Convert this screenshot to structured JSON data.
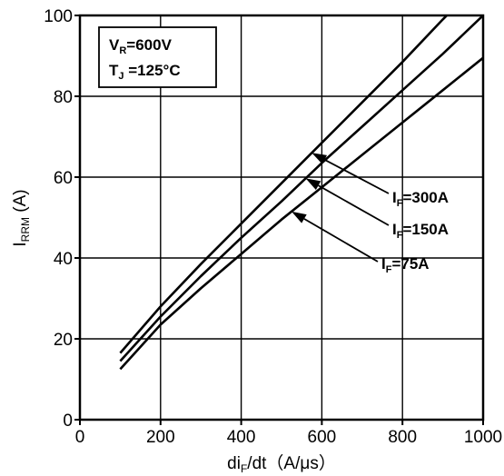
{
  "chart_data": {
    "type": "line",
    "xlabel": {
      "main": "di",
      "sub": "F",
      "rest": "/dt（A/μs）"
    },
    "ylabel": {
      "main": "I",
      "sub": "RRM",
      "rest": " (A)"
    },
    "xlim": [
      0,
      1000
    ],
    "ylim": [
      0,
      100
    ],
    "xticks": [
      "0",
      "200",
      "400",
      "600",
      "800",
      "1000"
    ],
    "yticks": [
      "0",
      "20",
      "40",
      "60",
      "80",
      "100"
    ],
    "grid": true,
    "conditions": [
      {
        "main": "V",
        "sub": "R",
        "rest": "=600V"
      },
      {
        "main": "T",
        "sub": "J",
        "rest": " =125°C"
      }
    ],
    "series": [
      {
        "name": {
          "main": "I",
          "sub": "F",
          "rest": "=300A"
        },
        "x": [
          100,
          200,
          300,
          400,
          500,
          600,
          700,
          800,
          900,
          1000
        ],
        "y": [
          16.5,
          28,
          38.5,
          48.5,
          58.5,
          68.5,
          78.5,
          88.5,
          99,
          109
        ]
      },
      {
        "name": {
          "main": "I",
          "sub": "F",
          "rest": "=150A"
        },
        "x": [
          100,
          200,
          300,
          400,
          500,
          600,
          700,
          800,
          900,
          1000
        ],
        "y": [
          14.5,
          25.5,
          35.5,
          45,
          54,
          63.5,
          72.5,
          81.5,
          90.5,
          100
        ]
      },
      {
        "name": {
          "main": "I",
          "sub": "F",
          "rest": "=75A"
        },
        "x": [
          100,
          200,
          300,
          400,
          500,
          600,
          700,
          800,
          900,
          1000
        ],
        "y": [
          12.5,
          23.5,
          32.5,
          41,
          49.5,
          57.5,
          65.5,
          73.5,
          81.5,
          89.5
        ]
      }
    ]
  }
}
